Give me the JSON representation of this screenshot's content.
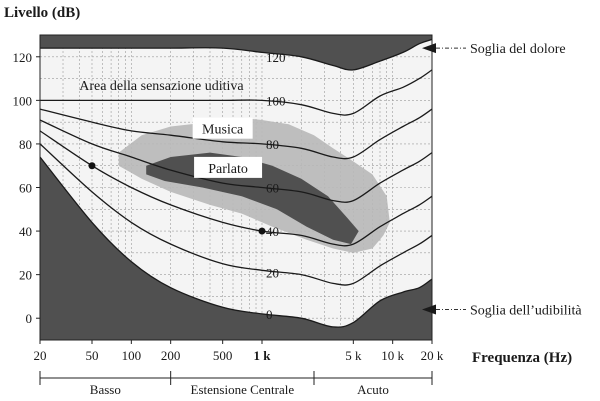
{
  "chart_data": {
    "type": "line",
    "ylabel": "Livello (dB)",
    "xlabel": "Frequenza (Hz)",
    "x_scale": "log",
    "xlim": [
      20,
      20000
    ],
    "ylim": [
      -10,
      130
    ],
    "x_ticks": [
      {
        "value": 20,
        "label": "20"
      },
      {
        "value": 50,
        "label": "50"
      },
      {
        "value": 100,
        "label": "100"
      },
      {
        "value": 200,
        "label": "200"
      },
      {
        "value": 500,
        "label": "500"
      },
      {
        "value": 1000,
        "label": "1 k",
        "bold": true
      },
      {
        "value": 5000,
        "label": "5 k"
      },
      {
        "value": 10000,
        "label": "10 k"
      },
      {
        "value": 20000,
        "label": "20 k"
      }
    ],
    "y_ticks": [
      0,
      20,
      40,
      60,
      80,
      100,
      120
    ],
    "grid": true,
    "series": [
      {
        "label": "0",
        "label_at": [
          1000,
          2
        ],
        "x": [
          20,
          50,
          100,
          200,
          500,
          1000,
          2000,
          3500,
          5000,
          8000,
          12000,
          16000,
          20000
        ],
        "y": [
          74,
          44,
          26,
          14,
          5,
          2,
          0,
          -4,
          -2,
          8,
          12,
          14,
          18
        ]
      },
      {
        "label": "20",
        "label_at": [
          1000,
          21
        ],
        "x": [
          20,
          50,
          100,
          200,
          500,
          1000,
          2000,
          3500,
          5000,
          8000,
          12000,
          16000,
          20000
        ],
        "y": [
          80,
          58,
          44,
          34,
          25,
          22,
          20,
          16,
          16,
          24,
          30,
          34,
          38
        ]
      },
      {
        "label": "40",
        "label_at": [
          1000,
          40
        ],
        "x": [
          20,
          50,
          100,
          200,
          500,
          1000,
          2000,
          3500,
          5000,
          8000,
          12000,
          16000,
          20000
        ],
        "y": [
          86,
          70,
          60,
          52,
          44,
          40,
          38,
          34,
          34,
          42,
          48,
          52,
          56
        ]
      },
      {
        "label": "60",
        "label_at": [
          1000,
          60
        ],
        "x": [
          20,
          50,
          100,
          200,
          500,
          1000,
          2000,
          3500,
          5000,
          8000,
          12000,
          16000,
          20000
        ],
        "y": [
          91,
          80,
          74,
          68,
          62,
          60,
          58,
          54,
          54,
          62,
          68,
          72,
          76
        ]
      },
      {
        "label": "80",
        "label_at": [
          1000,
          80
        ],
        "x": [
          20,
          50,
          100,
          200,
          500,
          1000,
          2000,
          3500,
          5000,
          8000,
          12000,
          16000,
          20000
        ],
        "y": [
          96,
          90,
          86,
          84,
          81,
          80,
          78,
          74,
          74,
          82,
          88,
          92,
          96
        ]
      },
      {
        "label": "100",
        "label_at": [
          1000,
          100
        ],
        "x": [
          20,
          50,
          100,
          200,
          500,
          1000,
          2000,
          3500,
          5000,
          8000,
          12000,
          16000,
          20000
        ],
        "y": [
          100,
          100,
          100,
          100,
          100,
          100,
          98,
          94,
          94,
          102,
          106,
          110,
          114
        ]
      },
      {
        "label": "120",
        "label_at": [
          1000,
          120
        ],
        "x": [
          20,
          50,
          100,
          200,
          500,
          1000,
          2000,
          3500,
          5000,
          8000,
          12000,
          16000,
          20000
        ],
        "y": [
          124,
          124,
          124,
          124,
          124,
          122,
          120,
          116,
          114,
          118,
          122,
          126,
          128
        ]
      }
    ],
    "points": [
      {
        "x": 50,
        "y": 70
      },
      {
        "x": 1000,
        "y": 40
      }
    ],
    "regions": [
      {
        "label": "Musica",
        "label_at": [
          500,
          87
        ],
        "fill": "#b8b8b8",
        "x": [
          80,
          120,
          200,
          400,
          700,
          1000,
          1600,
          2500,
          3500,
          5000,
          7000,
          9000,
          9500,
          8500,
          7000,
          5000,
          3500,
          2200,
          1200,
          700,
          400,
          200,
          120,
          80
        ],
        "y": [
          76,
          84,
          88,
          90,
          92,
          91,
          89,
          84,
          78,
          72,
          66,
          56,
          44,
          38,
          32,
          30,
          32,
          36,
          42,
          48,
          52,
          58,
          64,
          70
        ]
      },
      {
        "label": "Parlato",
        "label_at": [
          550,
          69
        ],
        "fill": "#4a4a4a",
        "x": [
          130,
          200,
          400,
          700,
          1200,
          2000,
          3200,
          4500,
          5500,
          4800,
          3500,
          2200,
          1300,
          700,
          350,
          180,
          130
        ],
        "y": [
          70,
          74,
          76,
          74,
          70,
          64,
          56,
          46,
          40,
          34,
          36,
          42,
          50,
          56,
          60,
          63,
          66
        ]
      }
    ],
    "annotations": [
      {
        "text": "Area della sensazione uditiva",
        "at": [
          170,
          107
        ]
      },
      {
        "text": "Soglia del dolore",
        "callout_y": 124
      },
      {
        "text": "Soglia dell’udibilità",
        "callout_y": 4
      }
    ],
    "bands": [
      {
        "label": "Basso",
        "from": 20,
        "to": 200
      },
      {
        "label": "Estensione Centrale",
        "from": 200,
        "to": 2500
      },
      {
        "label": "Acuto",
        "from": 2500,
        "to": 20000
      }
    ]
  }
}
